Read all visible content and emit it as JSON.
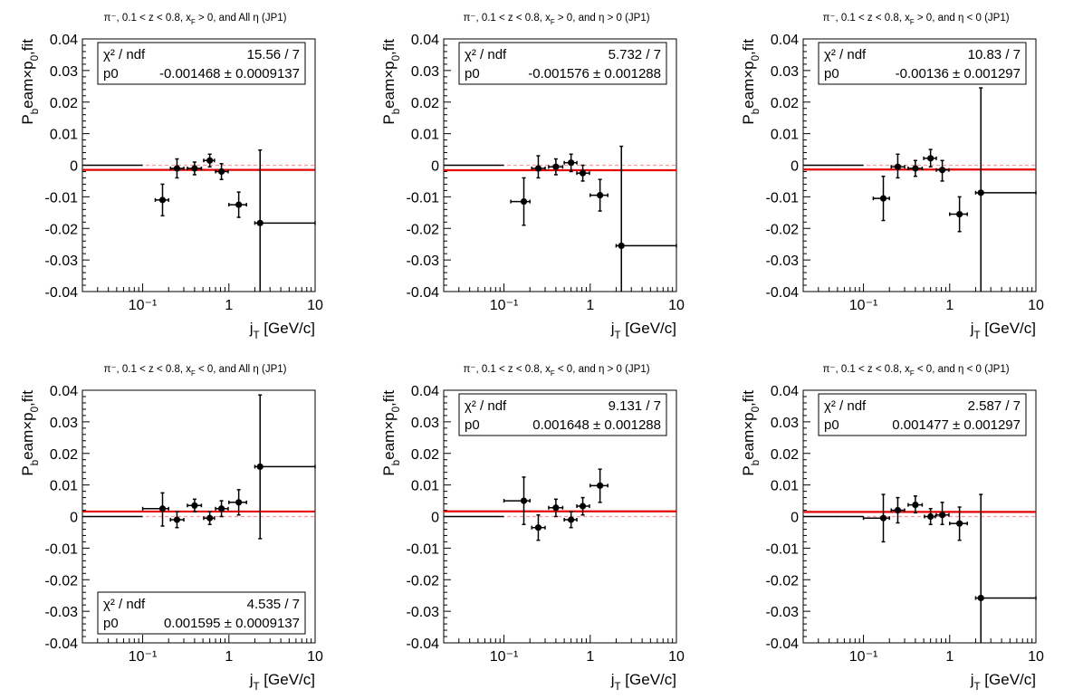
{
  "chart_data": [
    {
      "type": "scatter",
      "title": "π⁻, 0.1 < z < 0.8, x_F > 0, and All η (JP1)",
      "xlabel": "j_T [GeV/c]",
      "ylabel": "P_beam×p_0,fit",
      "xscale": "log",
      "xlim": [
        0.02,
        10
      ],
      "ylim": [
        -0.04,
        0.04
      ],
      "x_tick_labels": [
        "10⁻¹",
        "1",
        "10"
      ],
      "y_tick_labels": [
        "-0.04",
        "-0.03",
        "-0.02",
        "-0.01",
        "0",
        "0.01",
        "0.02",
        "0.03",
        "0.04"
      ],
      "series": [
        {
          "points": [
            {
              "x": 0.17,
              "xlo": 0.14,
              "xhi": 0.2,
              "y": -0.011,
              "ylo": -0.016,
              "yhi": -0.006
            },
            {
              "x": 0.25,
              "xlo": 0.21,
              "xhi": 0.3,
              "y": -0.001,
              "ylo": -0.004,
              "yhi": 0.002
            },
            {
              "x": 0.4,
              "xlo": 0.33,
              "xhi": 0.48,
              "y": -0.001,
              "ylo": -0.003,
              "yhi": 0.001
            },
            {
              "x": 0.6,
              "xlo": 0.51,
              "xhi": 0.68,
              "y": 0.0015,
              "ylo": -0.0005,
              "yhi": 0.0035
            },
            {
              "x": 0.82,
              "xlo": 0.7,
              "xhi": 0.98,
              "y": -0.002,
              "ylo": -0.0045,
              "yhi": 0.0005
            },
            {
              "x": 1.3,
              "xlo": 1.0,
              "xhi": 1.6,
              "y": -0.0125,
              "ylo": -0.0165,
              "yhi": -0.0085
            },
            {
              "x": 2.3,
              "xlo": 2.0,
              "xhi": 10.0,
              "y": -0.0183,
              "ylo": -0.0415,
              "yhi": 0.0048
            },
            {
              "x": 0.02,
              "xlo": 0.02,
              "xhi": 0.1,
              "y": 0.0,
              "ylo": 0.0,
              "yhi": 0.0
            }
          ]
        }
      ],
      "fit": {
        "p0": -0.001468
      },
      "stats_box": {
        "position": "top-left",
        "row1_label": "χ² / ndf",
        "row1_value": "15.56 / 7",
        "row2_label": "p0",
        "row2_value": "-0.001468 ± 0.0009137"
      }
    },
    {
      "type": "scatter",
      "title": "π⁻, 0.1 < z < 0.8, x_F > 0, and η > 0 (JP1)",
      "xlabel": "j_T [GeV/c]",
      "ylabel": "P_beam×p_0,fit",
      "xscale": "log",
      "xlim": [
        0.02,
        10
      ],
      "ylim": [
        -0.04,
        0.04
      ],
      "x_tick_labels": [
        "10⁻¹",
        "1",
        "10"
      ],
      "y_tick_labels": [
        "-0.04",
        "-0.03",
        "-0.02",
        "-0.01",
        "0",
        "0.01",
        "0.02",
        "0.03",
        "0.04"
      ],
      "series": [
        {
          "points": [
            {
              "x": 0.17,
              "xlo": 0.12,
              "xhi": 0.2,
              "y": -0.0115,
              "ylo": -0.019,
              "yhi": -0.004
            },
            {
              "x": 0.25,
              "xlo": 0.21,
              "xhi": 0.3,
              "y": -0.001,
              "ylo": -0.004,
              "yhi": 0.003
            },
            {
              "x": 0.4,
              "xlo": 0.33,
              "xhi": 0.48,
              "y": -0.0005,
              "ylo": -0.003,
              "yhi": 0.002
            },
            {
              "x": 0.6,
              "xlo": 0.5,
              "xhi": 0.7,
              "y": 0.0008,
              "ylo": -0.002,
              "yhi": 0.0035
            },
            {
              "x": 0.82,
              "xlo": 0.7,
              "xhi": 0.98,
              "y": -0.0025,
              "ylo": -0.005,
              "yhi": 0.0
            },
            {
              "x": 1.3,
              "xlo": 1.0,
              "xhi": 1.6,
              "y": -0.0095,
              "ylo": -0.0145,
              "yhi": -0.0045
            },
            {
              "x": 2.3,
              "xlo": 2.0,
              "xhi": 10.0,
              "y": -0.0255,
              "ylo": -0.057,
              "yhi": 0.006
            },
            {
              "x": 0.02,
              "xlo": 0.02,
              "xhi": 0.1,
              "y": 0.0,
              "ylo": 0.0,
              "yhi": 0.0
            }
          ]
        }
      ],
      "fit": {
        "p0": -0.001576
      },
      "stats_box": {
        "position": "top-left",
        "row1_label": "χ² / ndf",
        "row1_value": "5.732 / 7",
        "row2_label": "p0",
        "row2_value": "-0.001576 ± 0.001288"
      }
    },
    {
      "type": "scatter",
      "title": "π⁻, 0.1 < z < 0.8, x_F > 0, and η < 0 (JP1)",
      "xlabel": "j_T [GeV/c]",
      "ylabel": "P_beam×p_0,fit",
      "xscale": "log",
      "xlim": [
        0.02,
        10
      ],
      "ylim": [
        -0.04,
        0.04
      ],
      "x_tick_labels": [
        "10⁻¹",
        "1",
        "10"
      ],
      "y_tick_labels": [
        "-0.04",
        "-0.03",
        "-0.02",
        "-0.01",
        "0",
        "0.01",
        "0.02",
        "0.03",
        "0.04"
      ],
      "series": [
        {
          "points": [
            {
              "x": 0.17,
              "xlo": 0.13,
              "xhi": 0.2,
              "y": -0.0105,
              "ylo": -0.0175,
              "yhi": -0.0035
            },
            {
              "x": 0.25,
              "xlo": 0.21,
              "xhi": 0.3,
              "y": -0.0005,
              "ylo": -0.004,
              "yhi": 0.0035
            },
            {
              "x": 0.4,
              "xlo": 0.33,
              "xhi": 0.48,
              "y": -0.001,
              "ylo": -0.0035,
              "yhi": 0.0015
            },
            {
              "x": 0.6,
              "xlo": 0.5,
              "xhi": 0.7,
              "y": 0.0022,
              "ylo": -0.0005,
              "yhi": 0.005
            },
            {
              "x": 0.82,
              "xlo": 0.7,
              "xhi": 0.98,
              "y": -0.0015,
              "ylo": -0.005,
              "yhi": 0.0015
            },
            {
              "x": 1.3,
              "xlo": 1.0,
              "xhi": 1.6,
              "y": -0.0155,
              "ylo": -0.021,
              "yhi": -0.01
            },
            {
              "x": 2.3,
              "xlo": 2.0,
              "xhi": 10.0,
              "y": -0.0087,
              "ylo": -0.0425,
              "yhi": 0.0245
            },
            {
              "x": 0.02,
              "xlo": 0.02,
              "xhi": 0.1,
              "y": 0.0,
              "ylo": 0.0,
              "yhi": 0.0
            }
          ]
        }
      ],
      "fit": {
        "p0": -0.00136
      },
      "stats_box": {
        "position": "top-left",
        "row1_label": "χ² / ndf",
        "row1_value": "10.83 / 7",
        "row2_label": "p0",
        "row2_value": "-0.00136 ± 0.001297"
      }
    },
    {
      "type": "scatter",
      "title": "π⁻, 0.1 < z < 0.8, x_F < 0, and All η (JP1)",
      "xlabel": "j_T [GeV/c]",
      "ylabel": "P_beam×p_0,fit",
      "xscale": "log",
      "xlim": [
        0.02,
        10
      ],
      "ylim": [
        -0.04,
        0.04
      ],
      "x_tick_labels": [
        "10⁻¹",
        "1",
        "10"
      ],
      "y_tick_labels": [
        "-0.04",
        "-0.03",
        "-0.02",
        "-0.01",
        "0",
        "0.01",
        "0.02",
        "0.03",
        "0.04"
      ],
      "series": [
        {
          "points": [
            {
              "x": 0.17,
              "xlo": 0.1,
              "xhi": 0.2,
              "y": 0.0025,
              "ylo": -0.003,
              "yhi": 0.0075
            },
            {
              "x": 0.25,
              "xlo": 0.21,
              "xhi": 0.3,
              "y": -0.001,
              "ylo": -0.0035,
              "yhi": 0.0015
            },
            {
              "x": 0.4,
              "xlo": 0.33,
              "xhi": 0.48,
              "y": 0.0035,
              "ylo": 0.0015,
              "yhi": 0.0055
            },
            {
              "x": 0.6,
              "xlo": 0.51,
              "xhi": 0.68,
              "y": -0.0005,
              "ylo": -0.0025,
              "yhi": 0.0015
            },
            {
              "x": 0.82,
              "xlo": 0.7,
              "xhi": 0.98,
              "y": 0.0025,
              "ylo": 0.0,
              "yhi": 0.005
            },
            {
              "x": 1.3,
              "xlo": 1.0,
              "xhi": 1.6,
              "y": 0.0045,
              "ylo": 0.0005,
              "yhi": 0.0085
            },
            {
              "x": 2.3,
              "xlo": 2.0,
              "xhi": 10.0,
              "y": 0.0158,
              "ylo": -0.007,
              "yhi": 0.0385
            },
            {
              "x": 0.02,
              "xlo": 0.02,
              "xhi": 0.1,
              "y": 0.0,
              "ylo": 0.0,
              "yhi": 0.0
            }
          ]
        }
      ],
      "fit": {
        "p0": 0.001595
      },
      "stats_box": {
        "position": "bottom-left",
        "row1_label": "χ² / ndf",
        "row1_value": "4.535 / 7",
        "row2_label": "p0",
        "row2_value": "0.001595 ± 0.0009137"
      }
    },
    {
      "type": "scatter",
      "title": "π⁻, 0.1 < z < 0.8, x_F < 0, and η > 0 (JP1)",
      "xlabel": "j_T [GeV/c]",
      "ylabel": "P_beam×p_0,fit",
      "xscale": "log",
      "xlim": [
        0.02,
        10
      ],
      "ylim": [
        -0.04,
        0.04
      ],
      "x_tick_labels": [
        "10⁻¹",
        "1",
        "10"
      ],
      "y_tick_labels": [
        "-0.04",
        "-0.03",
        "-0.02",
        "-0.01",
        "0",
        "0.01",
        "0.02",
        "0.03",
        "0.04"
      ],
      "series": [
        {
          "points": [
            {
              "x": 0.17,
              "xlo": 0.1,
              "xhi": 0.2,
              "y": 0.005,
              "ylo": -0.0025,
              "yhi": 0.0125
            },
            {
              "x": 0.25,
              "xlo": 0.21,
              "xhi": 0.3,
              "y": -0.0035,
              "ylo": -0.0075,
              "yhi": 0.0005
            },
            {
              "x": 0.4,
              "xlo": 0.33,
              "xhi": 0.48,
              "y": 0.0028,
              "ylo": 0.0,
              "yhi": 0.0055
            },
            {
              "x": 0.6,
              "xlo": 0.5,
              "xhi": 0.7,
              "y": -0.001,
              "ylo": -0.0035,
              "yhi": 0.0015
            },
            {
              "x": 0.82,
              "xlo": 0.7,
              "xhi": 0.98,
              "y": 0.0033,
              "ylo": 0.0005,
              "yhi": 0.006
            },
            {
              "x": 1.3,
              "xlo": 1.0,
              "xhi": 1.6,
              "y": 0.0098,
              "ylo": 0.0045,
              "yhi": 0.015
            },
            {
              "x": 0.02,
              "xlo": 0.02,
              "xhi": 0.1,
              "y": 0.0,
              "ylo": 0.0,
              "yhi": 0.0
            }
          ]
        }
      ],
      "fit": {
        "p0": 0.001648
      },
      "stats_box": {
        "position": "top-left",
        "row1_label": "χ² / ndf",
        "row1_value": "9.131 / 7",
        "row2_label": "p0",
        "row2_value": "0.001648 ± 0.001288"
      }
    },
    {
      "type": "scatter",
      "title": "π⁻, 0.1 < z < 0.8, x_F < 0, and η < 0 (JP1)",
      "xlabel": "j_T [GeV/c]",
      "ylabel": "P_beam×p_0,fit",
      "xscale": "log",
      "xlim": [
        0.02,
        10
      ],
      "ylim": [
        -0.04,
        0.04
      ],
      "x_tick_labels": [
        "10⁻¹",
        "1",
        "10"
      ],
      "y_tick_labels": [
        "-0.04",
        "-0.03",
        "-0.02",
        "-0.01",
        "0",
        "0.01",
        "0.02",
        "0.03",
        "0.04"
      ],
      "series": [
        {
          "points": [
            {
              "x": 0.17,
              "xlo": 0.1,
              "xhi": 0.2,
              "y": -0.0005,
              "ylo": -0.008,
              "yhi": 0.007
            },
            {
              "x": 0.25,
              "xlo": 0.21,
              "xhi": 0.3,
              "y": 0.002,
              "ylo": -0.002,
              "yhi": 0.006
            },
            {
              "x": 0.4,
              "xlo": 0.33,
              "xhi": 0.48,
              "y": 0.0037,
              "ylo": 0.0012,
              "yhi": 0.0065
            },
            {
              "x": 0.6,
              "xlo": 0.51,
              "xhi": 0.68,
              "y": 0.0,
              "ylo": -0.0025,
              "yhi": 0.0025
            },
            {
              "x": 0.82,
              "xlo": 0.7,
              "xhi": 0.98,
              "y": 0.0005,
              "ylo": -0.0025,
              "yhi": 0.0045
            },
            {
              "x": 1.3,
              "xlo": 1.0,
              "xhi": 1.6,
              "y": -0.0022,
              "ylo": -0.0075,
              "yhi": 0.003
            },
            {
              "x": 2.3,
              "xlo": 2.0,
              "xhi": 10.0,
              "y": -0.0258,
              "ylo": -0.058,
              "yhi": 0.007
            },
            {
              "x": 0.02,
              "xlo": 0.02,
              "xhi": 0.1,
              "y": 0.0,
              "ylo": 0.0,
              "yhi": 0.0
            }
          ]
        }
      ],
      "fit": {
        "p0": 0.001477
      },
      "stats_box": {
        "position": "top-left",
        "row1_label": "χ² / ndf",
        "row1_value": "2.587 / 7",
        "row2_label": "p0",
        "row2_value": "0.001477 ± 0.001297"
      }
    }
  ],
  "colors": {
    "fit_line": "#e60000",
    "zero_line": "#ff9a9a",
    "markers": "#000000",
    "stats_border": "#000000",
    "background": "#ffffff"
  }
}
